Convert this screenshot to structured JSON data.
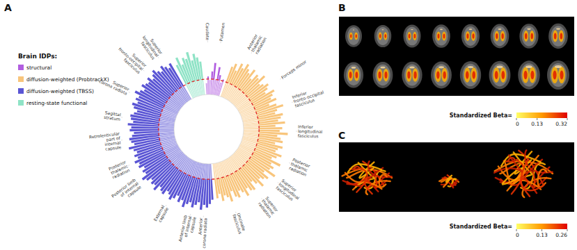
{
  "chart_data": [
    {
      "type": "bar",
      "title": "A",
      "legend_title": "Brain IDPs:",
      "ylim": [
        0,
        1
      ],
      "reference_line": 0.3,
      "series": [
        {
          "name": "structural",
          "color": "#b15ee0",
          "categories": [
            null,
            "Caudate",
            null,
            null,
            null,
            "Putamen",
            null,
            null,
            null,
            null
          ],
          "values": [
            0.22,
            0.35,
            0.28,
            0.45,
            0.62,
            0.3,
            0.55,
            0.4,
            0.26,
            0.33
          ]
        },
        {
          "name": "diffusion-weighted (ProbtrackX)",
          "color": "#f8c57c",
          "categories": [
            null,
            null,
            null,
            null,
            "Anterior thalamic radiation",
            null,
            null,
            null,
            null,
            null,
            null,
            null,
            null,
            null,
            null,
            null,
            "Forceps minor",
            null,
            null,
            null,
            null,
            null,
            null,
            null,
            "Inferior fronto-occipital fasciculus",
            null,
            null,
            null,
            null,
            null,
            null,
            null,
            null,
            "Inferior longitudinal fasciculus",
            null,
            null,
            null,
            null,
            null,
            null,
            null,
            null,
            null,
            "Posterior thalamic radiation",
            null,
            null,
            null,
            null,
            null,
            null,
            "Superior longitudinal fasciculus",
            null,
            null,
            null,
            null,
            null,
            null,
            "Superior thalamic radiation",
            null,
            null,
            null,
            null,
            null,
            null,
            null,
            null,
            "Uncinate fasciculus",
            null,
            null,
            null,
            null,
            null
          ],
          "values": [
            0.62,
            0.7,
            0.58,
            0.75,
            0.68,
            0.8,
            0.72,
            0.66,
            0.78,
            0.6,
            0.74,
            0.7,
            0.82,
            0.64,
            0.69,
            0.77,
            0.71,
            0.63,
            0.8,
            0.73,
            0.67,
            0.76,
            0.59,
            0.72,
            0.84,
            0.7,
            0.65,
            0.79,
            0.74,
            0.68,
            0.81,
            0.62,
            0.75,
            0.7,
            0.86,
            0.66,
            0.73,
            0.78,
            0.64,
            0.8,
            0.72,
            0.69,
            0.83,
            0.75,
            0.67,
            0.88,
            0.71,
            0.79,
            0.74,
            0.9,
            0.68,
            0.82,
            0.76,
            0.7,
            0.85,
            0.73,
            0.64,
            0.8,
            0.77,
            0.69,
            0.83,
            0.72,
            0.66,
            0.78,
            0.74,
            0.61,
            0.8,
            0.7,
            0.65,
            0.75,
            0.6,
            0.68
          ]
        },
        {
          "name": "diffusion-weighted (TBSS)",
          "color": "#5a55d4",
          "categories": [
            null,
            null,
            null,
            "Anterior corona radiata",
            null,
            null,
            null,
            "Anterior limb of internal capsule",
            null,
            null,
            null,
            null,
            null,
            null,
            null,
            "External capsule",
            null,
            null,
            null,
            null,
            null,
            null,
            null,
            null,
            null,
            null,
            "Posterior limb of internal capsule",
            null,
            null,
            null,
            null,
            null,
            "Posterior thalamic radiation",
            null,
            null,
            null,
            null,
            null,
            null,
            null,
            "Retrolenticular part of internal capsule",
            null,
            null,
            null,
            null,
            null,
            null,
            "Sagittal stratum",
            null,
            null,
            null,
            null,
            null,
            null,
            null,
            "Superior corona radiata",
            null,
            null,
            null,
            null,
            null,
            null,
            null,
            "Superior fronto-occipital fasciculus",
            null,
            null,
            null,
            null,
            null,
            "Superior longitudinal fasciculus",
            null,
            null
          ],
          "values": [
            0.7,
            0.78,
            0.85,
            0.8,
            0.9,
            0.76,
            0.82,
            0.88,
            0.79,
            0.84,
            0.92,
            0.8,
            0.86,
            0.75,
            0.83,
            0.89,
            0.81,
            0.77,
            0.87,
            0.84,
            0.79,
            0.91,
            0.83,
            0.86,
            0.8,
            0.88,
            0.94,
            0.82,
            0.85,
            0.78,
            0.87,
            0.83,
            0.9,
            0.81,
            0.86,
            0.79,
            0.84,
            0.92,
            0.8,
            0.85,
            0.88,
            0.82,
            0.78,
            0.86,
            0.83,
            0.9,
            0.8,
            0.85,
            0.87,
            0.81,
            0.76,
            0.84,
            0.89,
            0.8,
            0.86,
            0.82,
            0.93,
            0.85,
            0.79,
            0.88,
            0.83,
            0.8,
            0.87,
            0.78,
            0.84,
            0.9,
            0.82,
            0.77,
            0.86,
            0.8,
            0.74,
            0.81
          ]
        },
        {
          "name": "resting-state functional",
          "color": "#8fe3c6",
          "categories": [
            null,
            null,
            null,
            null,
            null,
            null,
            null,
            null,
            null,
            null
          ],
          "values": [
            0.72,
            0.85,
            0.68,
            0.8,
            0.76,
            0.88,
            0.7,
            0.82,
            0.74,
            0.65
          ]
        }
      ]
    },
    {
      "type": "image",
      "title": "B",
      "colorbar_label": "Standardized Beta=",
      "colorbar_range": [
        0,
        0.32
      ],
      "colorbar_ticks": [
        0,
        0.13,
        0.32
      ],
      "colors": [
        "#ffff66",
        "#ff9a00",
        "#e00000"
      ]
    },
    {
      "type": "image",
      "title": "C",
      "colorbar_label": "Standardized Beta=",
      "colorbar_range": [
        0,
        0.26
      ],
      "colorbar_ticks": [
        0,
        0.13,
        0.26
      ],
      "colors": [
        "#ffff66",
        "#ff9a00",
        "#e00000"
      ]
    }
  ]
}
